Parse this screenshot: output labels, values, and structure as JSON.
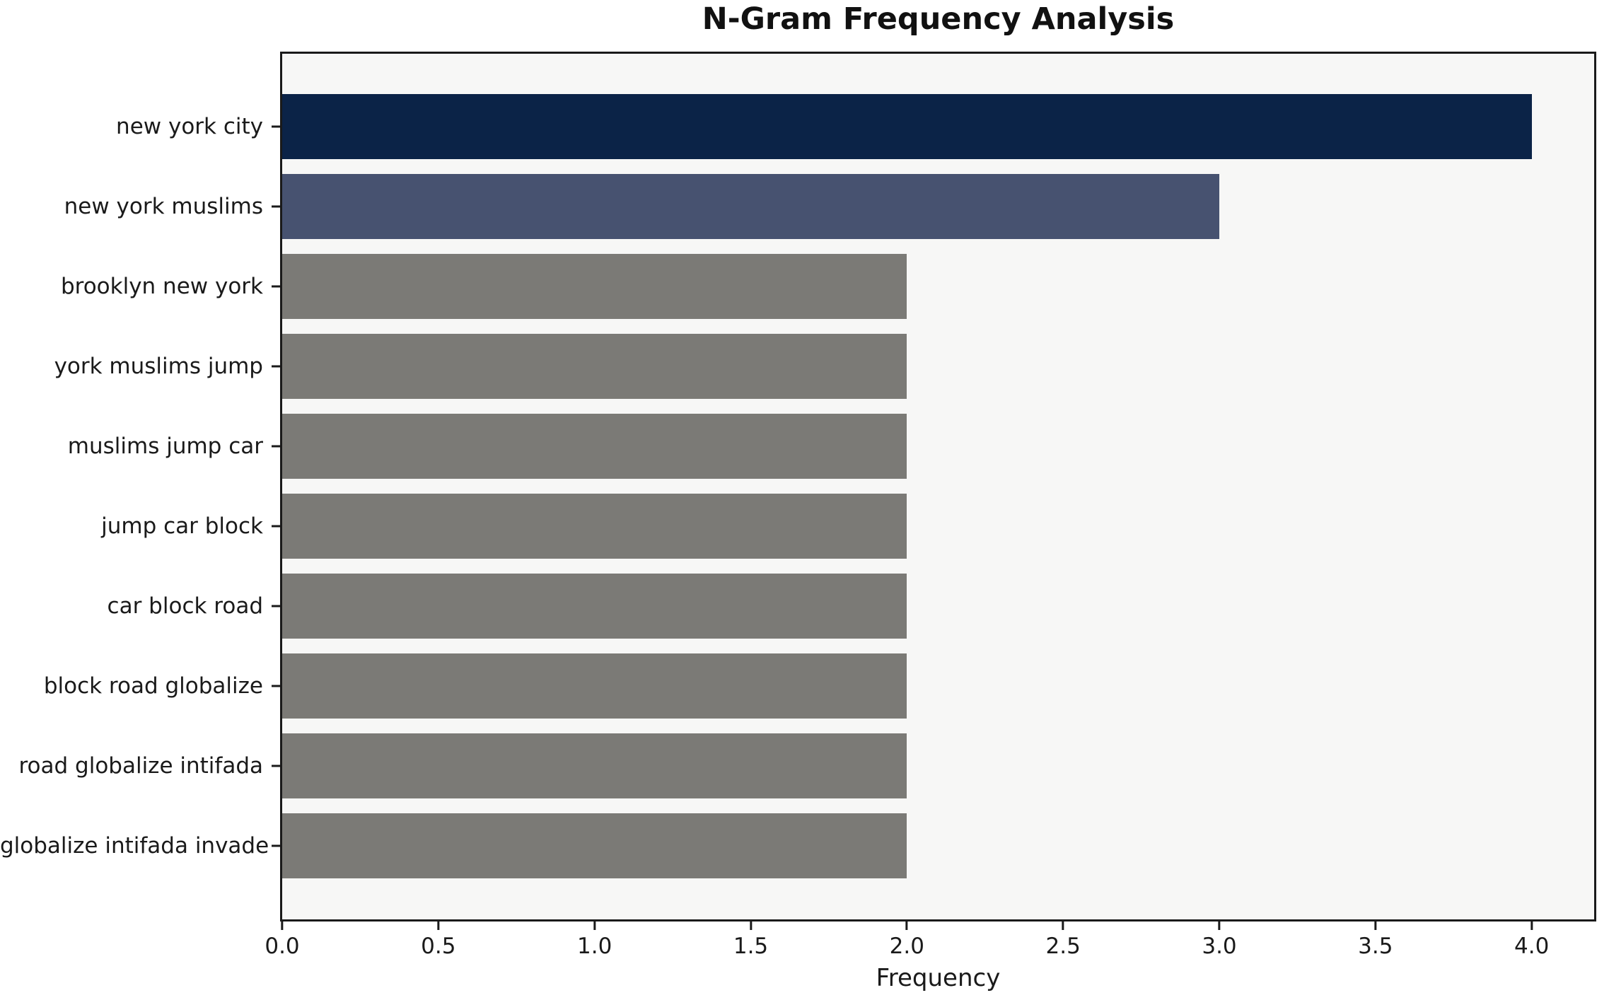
{
  "chart_data": {
    "type": "bar",
    "orientation": "horizontal",
    "title": "N-Gram Frequency Analysis",
    "xlabel": "Frequency",
    "ylabel": "",
    "categories": [
      "new york city",
      "new york muslims",
      "brooklyn new york",
      "york muslims jump",
      "muslims jump car",
      "jump car block",
      "car block road",
      "block road globalize",
      "road globalize intifada",
      "globalize intifada invade"
    ],
    "values": [
      4,
      3,
      2,
      2,
      2,
      2,
      2,
      2,
      2,
      2
    ],
    "xlim": [
      0,
      4.2
    ],
    "xticks": [
      0.0,
      0.5,
      1.0,
      1.5,
      2.0,
      2.5,
      3.0,
      3.5,
      4.0
    ],
    "xtick_labels": [
      "0.0",
      "0.5",
      "1.0",
      "1.5",
      "2.0",
      "2.5",
      "3.0",
      "3.5",
      "4.0"
    ],
    "grid": false,
    "legend": "none",
    "colors": {
      "bars": [
        "#0b2347",
        "#475270",
        "#7b7a76",
        "#7b7a76",
        "#7b7a76",
        "#7b7a76",
        "#7b7a76",
        "#7b7a76",
        "#7b7a76",
        "#7b7a76"
      ],
      "plot_background": "#f7f7f6",
      "figure_background": "#ffffff",
      "axis": "#1a1a1a",
      "text": "#1a1a1a"
    }
  }
}
